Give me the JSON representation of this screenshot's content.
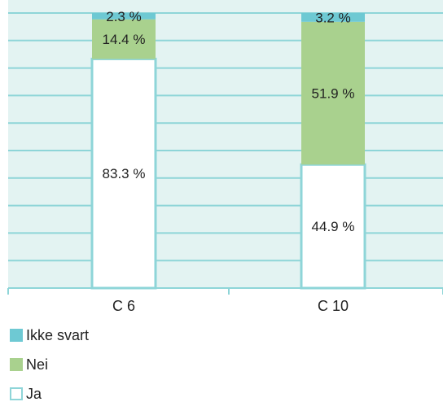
{
  "chart_data": {
    "type": "bar",
    "stacked": true,
    "orientation": "vertical",
    "percent_stacked": true,
    "categories": [
      "C 6",
      "C 10"
    ],
    "series": [
      {
        "name": "Ja",
        "values": [
          83.3,
          44.9
        ],
        "labels": [
          "83.3 %",
          "44.9 %"
        ],
        "color": "#ffffff",
        "stroke": "#8ed5d8"
      },
      {
        "name": "Nei",
        "values": [
          14.4,
          51.9
        ],
        "labels": [
          "14.4 %",
          "51.9 %"
        ],
        "color": "#a9d18e"
      },
      {
        "name": "Ikke svart",
        "values": [
          2.3,
          3.2
        ],
        "labels": [
          "2.3 %",
          "3.2 %"
        ],
        "color": "#6ec9d3"
      }
    ],
    "ylim": [
      0,
      100
    ],
    "grid": true,
    "legend_position": "bottom-left",
    "colors": {
      "plot_background": "#e3f3f2",
      "gridline": "#8ed5d8",
      "axis": "#8ed5d8"
    }
  }
}
